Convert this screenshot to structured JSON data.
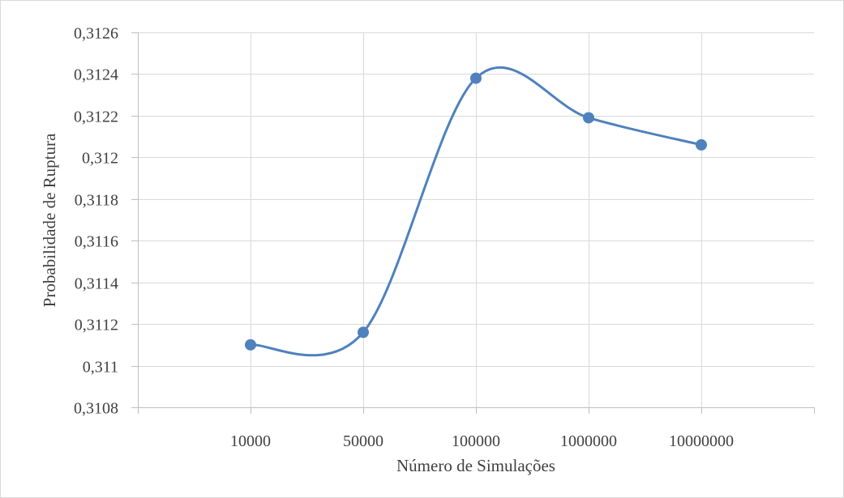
{
  "chart_data": {
    "type": "line",
    "title": "",
    "xlabel": "Número de Simulações",
    "ylabel": "Probabilidade de Ruptura",
    "categories": [
      "10000",
      "50000",
      "100000",
      "1000000",
      "10000000"
    ],
    "series": [
      {
        "values": [
          0.3111,
          0.31116,
          0.31238,
          0.31219,
          0.31206
        ]
      }
    ],
    "ylim": [
      0.3108,
      0.3126
    ],
    "y_ticks": [
      "0,3108",
      "0,311",
      "0,3112",
      "0,3114",
      "0,3116",
      "0,3118",
      "0,312",
      "0,3122",
      "0,3124",
      "0,3126"
    ],
    "y_tick_values": [
      0.3108,
      0.311,
      0.3112,
      0.3114,
      0.3116,
      0.3118,
      0.312,
      0.3122,
      0.3124,
      0.3126
    ],
    "smoothed": true,
    "grid": true,
    "legend": "none",
    "colors": {
      "series": "#4f81bd",
      "grid": "#d9d9d9",
      "axis": "#bfbfbf",
      "text": "#404040"
    }
  }
}
